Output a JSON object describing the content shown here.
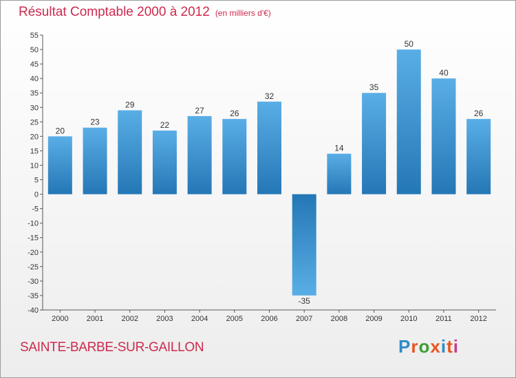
{
  "header": {
    "title": "Résultat Comptable 2000 à 2012",
    "subtitle": "(en milliers d'€)"
  },
  "footer": {
    "commune": "SAINTE-BARBE-SUR-GAILLON",
    "logo_text": "Proxiti",
    "logo_colors": [
      "#2f8ac8",
      "#e8551e",
      "#3f9c36",
      "#e8551e",
      "#2f8ac8",
      "#e8551e",
      "#c93b8f"
    ]
  },
  "chart_data": {
    "type": "bar",
    "title": "Résultat Comptable 2000 à 2012",
    "subtitle": "(en milliers d'€)",
    "categories": [
      "2000",
      "2001",
      "2002",
      "2003",
      "2004",
      "2005",
      "2006",
      "2007",
      "2008",
      "2009",
      "2010",
      "2011",
      "2012"
    ],
    "values": [
      20,
      23,
      29,
      22,
      27,
      26,
      32,
      -35,
      14,
      35,
      50,
      40,
      26
    ],
    "data_labels": [
      "20",
      "23",
      "29",
      "22",
      "27",
      "26",
      "32",
      "-35",
      "14",
      "35",
      "50",
      "40",
      "26"
    ],
    "ylim": [
      -40,
      55
    ],
    "yticks": [
      55,
      50,
      45,
      40,
      35,
      30,
      25,
      20,
      15,
      10,
      5,
      0,
      -5,
      -10,
      -15,
      -20,
      -25,
      -30,
      -35,
      -40
    ],
    "grid": false,
    "colors": {
      "bar_light": "#5aaee6",
      "bar_dark": "#2477b5",
      "axis": "#555555",
      "text": "#333333"
    }
  }
}
